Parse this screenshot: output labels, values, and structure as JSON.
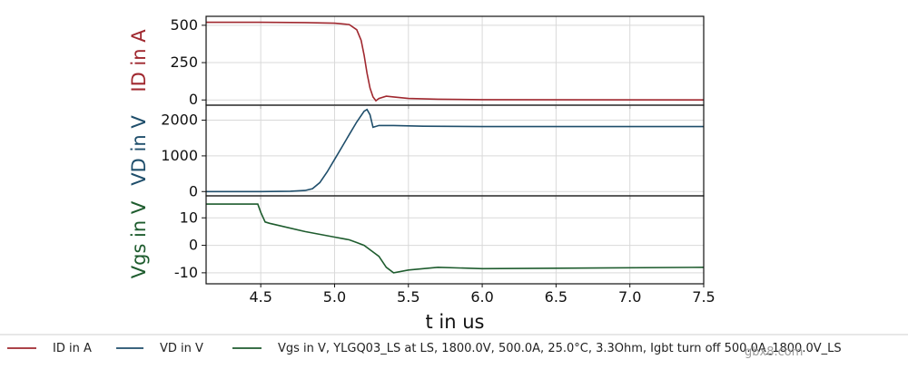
{
  "chart_data": {
    "type": "line",
    "xlabel": "t in us",
    "xlim": [
      4.13,
      7.5
    ],
    "xticks": [
      "4.5",
      "5.0",
      "5.5",
      "6.0",
      "6.5",
      "7.0",
      "7.5"
    ],
    "grid": true,
    "panels": [
      {
        "id": "id",
        "ylabel": "ID in A",
        "color": "#a0282f",
        "ylim": [
          -35,
          560
        ],
        "yticks": [
          0,
          250,
          500
        ],
        "series": {
          "name": "ID in A",
          "x": [
            4.13,
            4.5,
            4.8,
            5.0,
            5.1,
            5.15,
            5.18,
            5.2,
            5.22,
            5.24,
            5.26,
            5.28,
            5.3,
            5.35,
            5.4,
            5.5,
            5.7,
            6.0,
            7.5
          ],
          "y": [
            520,
            520,
            518,
            514,
            505,
            470,
            400,
            300,
            180,
            80,
            20,
            -5,
            10,
            25,
            20,
            10,
            5,
            2,
            0
          ]
        }
      },
      {
        "id": "vd",
        "ylabel": "VD in V",
        "color": "#1f4e6b",
        "ylim": [
          -120,
          2420
        ],
        "yticks": [
          0,
          1000,
          2000
        ],
        "series": {
          "name": "VD in V",
          "x": [
            4.13,
            4.5,
            4.7,
            4.8,
            4.85,
            4.9,
            4.95,
            5.0,
            5.05,
            5.1,
            5.15,
            5.2,
            5.22,
            5.24,
            5.26,
            5.3,
            5.4,
            5.6,
            6.0,
            7.5
          ],
          "y": [
            0,
            0,
            10,
            30,
            80,
            250,
            550,
            900,
            1250,
            1600,
            1950,
            2250,
            2300,
            2150,
            1800,
            1850,
            1850,
            1830,
            1820,
            1820
          ]
        }
      },
      {
        "id": "vgs",
        "ylabel": "Vgs in V",
        "color": "#1e5c2e",
        "ylim": [
          -14,
          18
        ],
        "yticks": [
          -10,
          0,
          10
        ],
        "series": {
          "name": "Vgs in V, YLGQ03_LS at LS, 1800.0V, 500.0A, 25.0°C, 3.3Ohm, Igbt turn off 500.0A_1800.0V_LS",
          "x": [
            4.13,
            4.45,
            4.48,
            4.5,
            4.53,
            4.56,
            4.6,
            4.8,
            5.0,
            5.1,
            5.15,
            5.2,
            5.25,
            5.3,
            5.35,
            5.4,
            5.5,
            5.7,
            6.0,
            7.5
          ],
          "y": [
            15,
            15,
            15,
            12,
            8.5,
            8,
            7.5,
            5,
            3,
            2,
            1,
            0,
            -2,
            -4,
            -8,
            -10,
            -9,
            -8,
            -8.5,
            -8
          ]
        }
      }
    ],
    "legend_position": "bottom"
  },
  "watermark": "gbx8.com"
}
